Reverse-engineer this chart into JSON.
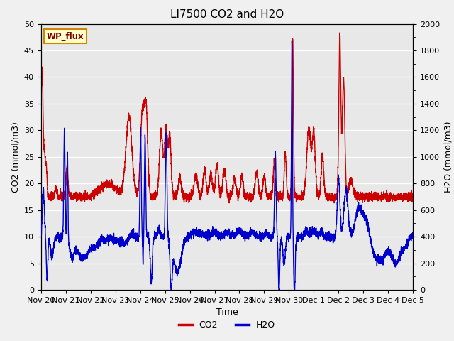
{
  "title": "LI7500 CO2 and H2O",
  "xlabel": "Time",
  "ylabel_left": "CO2 (mmol/m3)",
  "ylabel_right": "H2O (mmol/m3)",
  "ylim_left": [
    0,
    50
  ],
  "ylim_right": [
    0,
    2000
  ],
  "co2_color": "#cc0000",
  "h2o_color": "#0000cc",
  "fig_bg": "#f0f0f0",
  "plot_bg": "#e8e8e8",
  "grid_color": "#ffffff",
  "wp_flux_label": "WP_flux",
  "wp_flux_bg": "#ffffcc",
  "wp_flux_border": "#cc8800",
  "wp_flux_text_color": "#800000",
  "legend_co2": "CO2",
  "legend_h2o": "H2O",
  "line_width": 1.0,
  "title_fontsize": 11,
  "axis_fontsize": 9,
  "tick_fontsize": 8,
  "n_points": 4000
}
